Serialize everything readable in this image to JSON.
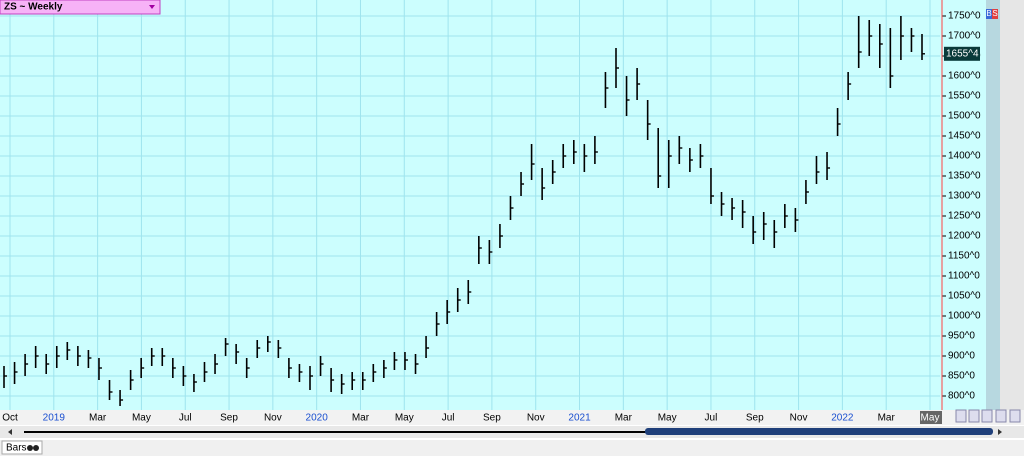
{
  "chart_data": {
    "type": "ohlc",
    "title": "ZS ~ Weekly",
    "x_axis_labels": [
      "Oct",
      "2019",
      "Mar",
      "May",
      "Jul",
      "Sep",
      "Nov",
      "2020",
      "Mar",
      "May",
      "Jul",
      "Sep",
      "Nov",
      "2021",
      "Mar",
      "May",
      "Jul",
      "Sep",
      "Nov",
      "2022",
      "Mar",
      "May"
    ],
    "high": [
      875,
      885,
      905,
      925,
      905,
      925,
      935,
      925,
      915,
      895,
      840,
      815,
      865,
      895,
      920,
      920,
      895,
      875,
      855,
      885,
      905,
      945,
      930,
      895,
      940,
      950,
      940,
      895,
      880,
      875,
      900,
      870,
      855,
      860,
      860,
      880,
      890,
      910,
      910,
      905,
      950,
      1010,
      1040,
      1070,
      1090,
      1200,
      1190,
      1230,
      1300,
      1360,
      1430,
      1370,
      1390,
      1430,
      1440,
      1430,
      1450,
      1610,
      1670,
      1600,
      1620,
      1540,
      1470,
      1440,
      1450,
      1420,
      1430,
      1370,
      1310,
      1295,
      1290,
      1250,
      1260,
      1240,
      1280,
      1270,
      1340,
      1400,
      1410,
      1520,
      1610,
      1750,
      1740,
      1730,
      1720,
      1750,
      1720,
      1705
    ],
    "low": [
      820,
      830,
      850,
      870,
      855,
      870,
      890,
      875,
      870,
      840,
      790,
      775,
      815,
      845,
      875,
      875,
      845,
      825,
      810,
      835,
      855,
      900,
      880,
      845,
      895,
      910,
      895,
      845,
      835,
      815,
      850,
      810,
      805,
      815,
      815,
      835,
      845,
      865,
      865,
      855,
      895,
      950,
      980,
      1010,
      1030,
      1130,
      1130,
      1170,
      1240,
      1300,
      1340,
      1290,
      1330,
      1370,
      1380,
      1360,
      1380,
      1520,
      1570,
      1500,
      1540,
      1440,
      1320,
      1320,
      1380,
      1360,
      1370,
      1280,
      1250,
      1240,
      1220,
      1180,
      1190,
      1170,
      1220,
      1210,
      1280,
      1330,
      1340,
      1450,
      1540,
      1620,
      1650,
      1620,
      1570,
      1640,
      1660,
      1640
    ],
    "close": [
      850,
      860,
      880,
      900,
      880,
      900,
      915,
      900,
      895,
      870,
      810,
      790,
      840,
      870,
      900,
      900,
      870,
      850,
      835,
      860,
      880,
      930,
      910,
      870,
      920,
      935,
      920,
      870,
      860,
      850,
      880,
      840,
      830,
      840,
      840,
      860,
      870,
      890,
      890,
      880,
      920,
      980,
      1010,
      1040,
      1060,
      1170,
      1160,
      1200,
      1270,
      1330,
      1380,
      1320,
      1360,
      1400,
      1410,
      1400,
      1410,
      1570,
      1620,
      1540,
      1580,
      1480,
      1350,
      1400,
      1420,
      1390,
      1400,
      1300,
      1280,
      1270,
      1260,
      1210,
      1230,
      1210,
      1250,
      1240,
      1310,
      1360,
      1370,
      1480,
      1580,
      1660,
      1700,
      1680,
      1600,
      1700,
      1700,
      1655.5
    ],
    "color": "#000000",
    "ylim": [
      775,
      1780
    ],
    "yticks": [
      {
        "value": 800,
        "label": "800^0"
      },
      {
        "value": 850,
        "label": "850^0"
      },
      {
        "value": 900,
        "label": "900^0"
      },
      {
        "value": 950,
        "label": "950^0"
      },
      {
        "value": 1000,
        "label": "1000^0"
      },
      {
        "value": 1050,
        "label": "1050^0"
      },
      {
        "value": 1100,
        "label": "1100^0"
      },
      {
        "value": 1150,
        "label": "1150^0"
      },
      {
        "value": 1200,
        "label": "1200^0"
      },
      {
        "value": 1250,
        "label": "1250^0"
      },
      {
        "value": 1300,
        "label": "1300^0"
      },
      {
        "value": 1350,
        "label": "1350^0"
      },
      {
        "value": 1400,
        "label": "1400^0"
      },
      {
        "value": 1450,
        "label": "1450^0"
      },
      {
        "value": 1500,
        "label": "1500^0"
      },
      {
        "value": 1550,
        "label": "1550^0"
      },
      {
        "value": 1600,
        "label": "1600^0"
      },
      {
        "value": 1650,
        "label": "1650^0"
      },
      {
        "value": 1700,
        "label": "1700^0"
      },
      {
        "value": 1750,
        "label": "1750^0"
      }
    ],
    "last_price": {
      "value": 1655.5,
      "label": "1655^4"
    },
    "grid": true
  },
  "ui": {
    "buy_button": "B",
    "sell_button": "S",
    "status_label": "Bars"
  }
}
